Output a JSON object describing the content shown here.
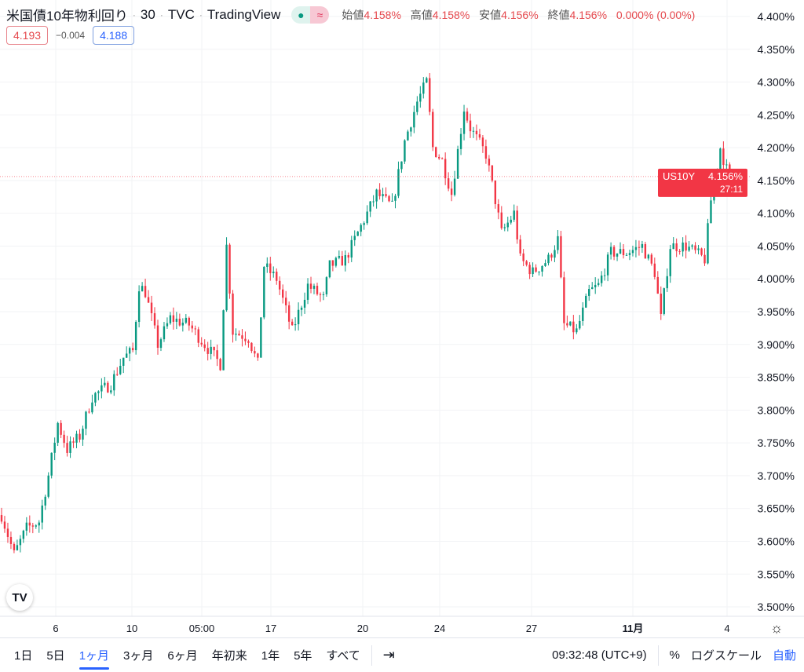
{
  "header": {
    "title": "米国債10年物利回り",
    "interval": "30",
    "source": "TVC",
    "provider": "TradingView",
    "ohlc": [
      {
        "label": "始値",
        "value": "4.158%"
      },
      {
        "label": "高値",
        "value": "4.158%"
      },
      {
        "label": "安値",
        "value": "4.156%"
      },
      {
        "label": "終値",
        "value": "4.156%"
      }
    ],
    "change": "0.000% (0.00%)",
    "market_status_icons": [
      "dot-icon",
      "approx-icon"
    ],
    "dot": "●",
    "approx": "≈"
  },
  "quote": {
    "sell": "4.193",
    "spread": "−0.004",
    "buy": "4.188"
  },
  "price_label": {
    "symbol": "US10Y",
    "price": "4.156%",
    "countdown": "27:11"
  },
  "colors": {
    "up": "#089981",
    "down": "#f23645",
    "accent": "#2962ff",
    "label_bg": "#f23645"
  },
  "chart_data": {
    "type": "candlestick",
    "y_ticks": [
      "4.400%",
      "4.350%",
      "4.300%",
      "4.250%",
      "4.200%",
      "4.150%",
      "4.100%",
      "4.050%",
      "4.000%",
      "3.950%",
      "3.900%",
      "3.850%",
      "3.800%",
      "3.750%",
      "3.700%",
      "3.650%",
      "3.600%",
      "3.550%",
      "3.500%"
    ],
    "ylim": [
      3.48,
      4.42
    ],
    "x_ticks": [
      "6",
      "10",
      "05:00",
      "17",
      "20",
      "24",
      "27",
      "11月",
      "4"
    ],
    "current_price": 4.156,
    "approx_close_path": [
      [
        0,
        3.64
      ],
      [
        4,
        3.58
      ],
      [
        8,
        3.62
      ],
      [
        12,
        3.63
      ],
      [
        15,
        3.7
      ],
      [
        18,
        3.78
      ],
      [
        21,
        3.74
      ],
      [
        25,
        3.76
      ],
      [
        29,
        3.82
      ],
      [
        35,
        3.84
      ],
      [
        39,
        3.88
      ],
      [
        42,
        3.89
      ],
      [
        44,
        3.99
      ],
      [
        46,
        3.98
      ],
      [
        50,
        3.9
      ],
      [
        54,
        3.94
      ],
      [
        60,
        3.93
      ],
      [
        65,
        3.9
      ],
      [
        70,
        3.87
      ],
      [
        72,
        4.05
      ],
      [
        74,
        3.92
      ],
      [
        79,
        3.91
      ],
      [
        82,
        3.87
      ],
      [
        84,
        4.02
      ],
      [
        88,
        4.0
      ],
      [
        93,
        3.92
      ],
      [
        98,
        3.99
      ],
      [
        103,
        3.97
      ],
      [
        105,
        4.02
      ],
      [
        110,
        4.03
      ],
      [
        115,
        4.08
      ],
      [
        120,
        4.13
      ],
      [
        125,
        4.11
      ],
      [
        129,
        4.21
      ],
      [
        133,
        4.27
      ],
      [
        136,
        4.3
      ],
      [
        138,
        4.2
      ],
      [
        141,
        4.18
      ],
      [
        144,
        4.13
      ],
      [
        148,
        4.26
      ],
      [
        150,
        4.23
      ],
      [
        155,
        4.19
      ],
      [
        158,
        4.12
      ],
      [
        160,
        4.07
      ],
      [
        164,
        4.1
      ],
      [
        166,
        4.03
      ],
      [
        170,
        4.01
      ],
      [
        175,
        4.03
      ],
      [
        178,
        4.06
      ],
      [
        180,
        3.93
      ],
      [
        184,
        3.92
      ],
      [
        188,
        3.98
      ],
      [
        191,
        3.99
      ],
      [
        195,
        4.04
      ],
      [
        200,
        4.04
      ],
      [
        205,
        4.05
      ],
      [
        209,
        4.01
      ],
      [
        211,
        3.94
      ],
      [
        214,
        4.05
      ],
      [
        219,
        4.05
      ],
      [
        225,
        4.03
      ],
      [
        227,
        4.12
      ],
      [
        230,
        4.2
      ],
      [
        233,
        4.15
      ],
      [
        235,
        4.156
      ]
    ]
  },
  "footer": {
    "ranges": [
      "1日",
      "5日",
      "1ヶ月",
      "3ヶ月",
      "6ヶ月",
      "年初来",
      "1年",
      "5年",
      "すべて"
    ],
    "active_range": "1ヶ月",
    "time": "09:32:48 (UTC+9)",
    "percent": "%",
    "log": "ログスケール",
    "auto": "自動"
  },
  "logo": "TV"
}
